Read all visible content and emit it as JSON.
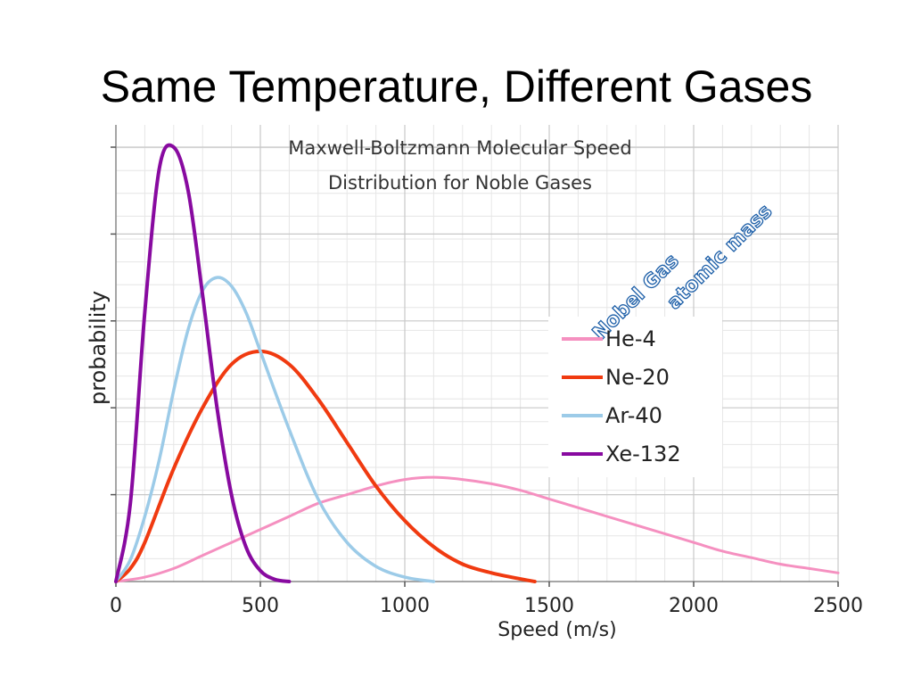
{
  "slide": {
    "title": "Same Temperature, Different Gases"
  },
  "chart_data": {
    "type": "line",
    "title": "Maxwell-Boltzmann Molecular Speed",
    "subtitle": "Distribution for Noble Gases",
    "xlabel": "Speed (m/s)",
    "ylabel": "probability",
    "xlim": [
      0,
      2500
    ],
    "x_ticks": [
      0,
      500,
      1000,
      1500,
      2000,
      2500
    ],
    "x_tick_labels": [
      "0",
      "500",
      "1000",
      "1500",
      "2000",
      "2500"
    ],
    "ylim": [
      0,
      1.0
    ],
    "y_ticks": [
      0.2,
      0.4,
      0.6,
      0.8,
      1.0
    ],
    "grid": true,
    "legend_title_line1": "Nobel Gas",
    "legend_title_line2": "atomic mass",
    "legend_position": "right",
    "series": [
      {
        "name": "He-4",
        "color": "#f590c0",
        "x": [
          0,
          100,
          200,
          300,
          400,
          500,
          600,
          700,
          800,
          900,
          1000,
          1100,
          1200,
          1300,
          1400,
          1500,
          1600,
          1700,
          1800,
          1900,
          2000,
          2100,
          2200,
          2300,
          2400,
          2500
        ],
        "y": [
          0,
          0.01,
          0.03,
          0.06,
          0.09,
          0.12,
          0.15,
          0.18,
          0.2,
          0.22,
          0.235,
          0.24,
          0.235,
          0.225,
          0.21,
          0.19,
          0.17,
          0.15,
          0.13,
          0.11,
          0.09,
          0.07,
          0.055,
          0.04,
          0.03,
          0.02
        ]
      },
      {
        "name": "Ne-20",
        "color": "#f03a10",
        "x": [
          0,
          50,
          100,
          200,
          300,
          400,
          500,
          600,
          700,
          800,
          900,
          1000,
          1100,
          1200,
          1300,
          1400,
          1450
        ],
        "y": [
          0,
          0.03,
          0.09,
          0.26,
          0.4,
          0.5,
          0.53,
          0.5,
          0.42,
          0.32,
          0.22,
          0.14,
          0.08,
          0.04,
          0.02,
          0.006,
          0
        ]
      },
      {
        "name": "Ar-40",
        "color": "#9ccbe8",
        "x": [
          0,
          50,
          100,
          150,
          200,
          250,
          300,
          350,
          400,
          450,
          500,
          600,
          700,
          800,
          900,
          1000,
          1100
        ],
        "y": [
          0,
          0.05,
          0.15,
          0.28,
          0.44,
          0.58,
          0.67,
          0.7,
          0.68,
          0.62,
          0.53,
          0.35,
          0.19,
          0.09,
          0.035,
          0.01,
          0
        ]
      },
      {
        "name": "Xe-132",
        "color": "#880aa0",
        "x": [
          0,
          50,
          100,
          150,
          200,
          250,
          300,
          350,
          400,
          450,
          500,
          550,
          600
        ],
        "y": [
          0,
          0.18,
          0.62,
          0.95,
          1.0,
          0.9,
          0.66,
          0.4,
          0.2,
          0.08,
          0.025,
          0.005,
          0
        ]
      }
    ]
  }
}
